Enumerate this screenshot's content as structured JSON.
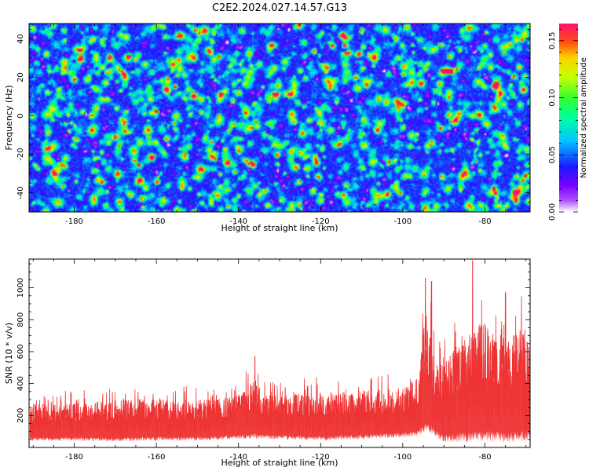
{
  "title": "C2E2.2024.027.14.57.G13",
  "chart_data": [
    {
      "type": "heatmap",
      "xlabel": "Height of straight line (km)",
      "ylabel": "Frequency (Hz)",
      "xlim": [
        -191,
        -69
      ],
      "ylim": [
        -50,
        48
      ],
      "xticks": [
        -180,
        -160,
        -140,
        -120,
        -100,
        -80
      ],
      "yticks": [
        -40,
        -20,
        0,
        20,
        40
      ],
      "colorbar": {
        "label": "Normalized spectral amplitude",
        "range": [
          0,
          0.165
        ],
        "ticks": [
          "0.00",
          "0.05",
          "0.10",
          "0.15"
        ],
        "colormap": "rainbow (white-purple-blue-cyan-green-yellow-red-magenta)"
      },
      "notes": "noise-like speckle field; mostly blue/purple with scattered cyan/green blobs, a few yellow-red peaks near (-160,-34), (-91,-6), (-100,22)"
    },
    {
      "type": "line",
      "xlabel": "Height of straight line (km)",
      "ylabel": "SNR (10 * v/v)",
      "xlim": [
        -191,
        -69
      ],
      "ylim": [
        0,
        1180
      ],
      "xticks": [
        -180,
        -160,
        -140,
        -120,
        -100,
        -80
      ],
      "yticks": [
        200,
        400,
        600,
        800,
        1000
      ],
      "color": "#ee3333",
      "grid": false,
      "envelope": {
        "x": [
          -191,
          -180,
          -170,
          -160,
          -150,
          -140,
          -136,
          -134,
          -130,
          -120,
          -110,
          -100,
          -96,
          -95,
          -94,
          -93,
          -92,
          -90,
          -85,
          -80,
          -75,
          -70,
          -69
        ],
        "low": [
          40,
          40,
          35,
          40,
          40,
          50,
          50,
          50,
          50,
          40,
          50,
          60,
          70,
          80,
          80,
          80,
          60,
          30,
          30,
          30,
          30,
          30,
          40
        ],
        "high": [
          350,
          360,
          380,
          400,
          390,
          420,
          560,
          440,
          420,
          450,
          460,
          470,
          600,
          1000,
          1050,
          900,
          700,
          750,
          900,
          1050,
          900,
          1000,
          900
        ],
        "peaks": [
          [
            -136,
            570
          ],
          [
            -94.5,
            1060
          ],
          [
            -93,
            1040
          ],
          [
            -83,
            1170
          ],
          [
            -75,
            970
          ]
        ]
      }
    }
  ]
}
